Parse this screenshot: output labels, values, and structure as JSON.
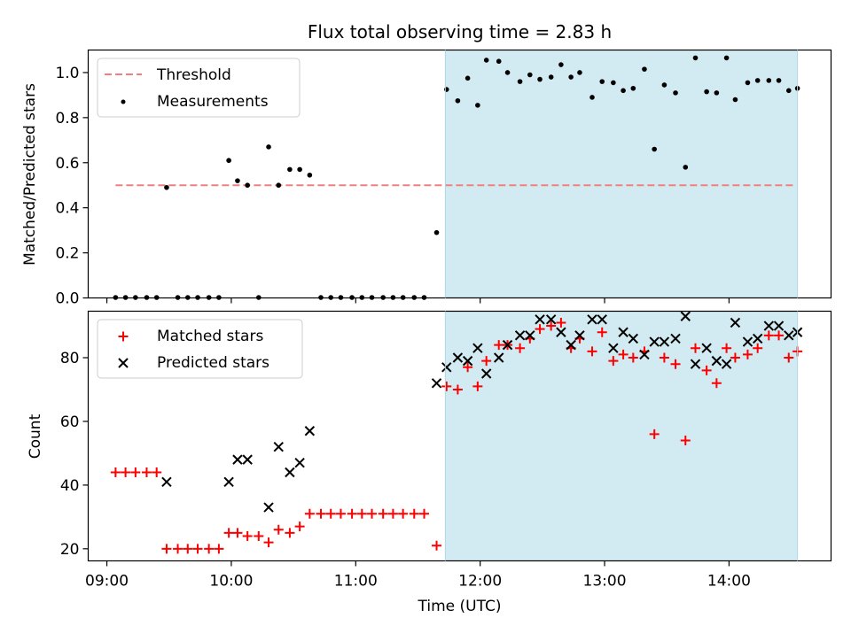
{
  "chart_data": [
    {
      "type": "scatter",
      "title": "Flux total observing time = 2.83 h",
      "xlabel": "",
      "ylabel": "Matched/Predicted stars",
      "xlim": [
        8.85,
        14.82
      ],
      "ylim": [
        0,
        1.1
      ],
      "yticks": [
        0.0,
        0.2,
        0.4,
        0.6,
        0.8,
        1.0
      ],
      "ytick_labels": [
        "0.0",
        "0.2",
        "0.4",
        "0.6",
        "0.8",
        "1.0"
      ],
      "shaded_region": [
        11.72,
        14.55
      ],
      "shaded_color": "#add8e6",
      "threshold": {
        "name": "Threshold",
        "value": 0.5,
        "x_range": [
          9.07,
          14.52
        ],
        "color": "#f08080"
      },
      "legend": [
        "Threshold",
        "Measurements"
      ],
      "legend_loc": "upper-left",
      "series": [
        {
          "name": "Measurements",
          "marker": "dot",
          "color": "#000000",
          "x": [
            9.07,
            9.15,
            9.23,
            9.32,
            9.4,
            9.48,
            9.57,
            9.65,
            9.73,
            9.82,
            9.9,
            9.98,
            10.05,
            10.13,
            10.22,
            10.3,
            10.38,
            10.47,
            10.55,
            10.63,
            10.72,
            10.8,
            10.88,
            10.97,
            11.05,
            11.13,
            11.22,
            11.3,
            11.38,
            11.47,
            11.55,
            11.65,
            11.73,
            11.82,
            11.9,
            11.98,
            12.05,
            12.15,
            12.22,
            12.32,
            12.4,
            12.48,
            12.57,
            12.65,
            12.73,
            12.8,
            12.9,
            12.98,
            13.07,
            13.15,
            13.23,
            13.32,
            13.4,
            13.48,
            13.57,
            13.65,
            13.73,
            13.82,
            13.9,
            13.98,
            14.05,
            14.15,
            14.23,
            14.32,
            14.4,
            14.48,
            14.55
          ],
          "y": [
            0.0,
            0.0,
            0.0,
            0.0,
            0.0,
            0.49,
            0.0,
            0.0,
            0.0,
            0.0,
            0.0,
            0.61,
            0.52,
            0.5,
            0.0,
            0.67,
            0.5,
            0.57,
            0.57,
            0.545,
            0.0,
            0.0,
            0.0,
            0.0,
            0.0,
            0.0,
            0.0,
            0.0,
            0.0,
            0.0,
            0.0,
            0.29,
            0.925,
            0.875,
            0.975,
            0.855,
            1.055,
            1.05,
            1.0,
            0.96,
            0.99,
            0.97,
            0.98,
            1.035,
            0.98,
            1.0,
            0.89,
            0.96,
            0.955,
            0.92,
            0.93,
            1.015,
            0.66,
            0.945,
            0.91,
            0.58,
            1.065,
            0.915,
            0.91,
            1.065,
            0.88,
            0.955,
            0.965,
            0.965,
            0.965,
            0.92,
            0.93
          ]
        }
      ]
    },
    {
      "type": "scatter",
      "title": "",
      "xlabel": "Time (UTC)",
      "ylabel": "Count",
      "xlim": [
        8.85,
        14.82
      ],
      "ylim": [
        16.2,
        94.6
      ],
      "yticks": [
        20,
        40,
        60,
        80
      ],
      "ytick_labels": [
        "20",
        "40",
        "60",
        "80"
      ],
      "xticks": [
        9,
        10,
        11,
        12,
        13,
        14
      ],
      "xtick_labels": [
        "09:00",
        "10:00",
        "11:00",
        "12:00",
        "13:00",
        "14:00"
      ],
      "shaded_region": [
        11.72,
        14.55
      ],
      "shaded_color": "#add8e6",
      "legend": [
        "Matched stars",
        "Predicted stars"
      ],
      "legend_loc": "upper-left",
      "series": [
        {
          "name": "Matched stars",
          "marker": "plus",
          "color": "#ff0000",
          "x": [
            9.07,
            9.15,
            9.23,
            9.32,
            9.4,
            9.48,
            9.57,
            9.65,
            9.73,
            9.82,
            9.9,
            9.98,
            10.05,
            10.13,
            10.22,
            10.3,
            10.38,
            10.47,
            10.55,
            10.63,
            10.72,
            10.8,
            10.88,
            10.97,
            11.05,
            11.13,
            11.22,
            11.3,
            11.38,
            11.47,
            11.55,
            11.65,
            11.73,
            11.82,
            11.9,
            11.98,
            12.05,
            12.15,
            12.22,
            12.32,
            12.4,
            12.48,
            12.57,
            12.65,
            12.73,
            12.8,
            12.9,
            12.98,
            13.07,
            13.15,
            13.23,
            13.32,
            13.4,
            13.48,
            13.57,
            13.65,
            13.73,
            13.82,
            13.9,
            13.98,
            14.05,
            14.15,
            14.23,
            14.32,
            14.4,
            14.48,
            14.55
          ],
          "y": [
            44,
            44,
            44,
            44,
            44,
            20,
            20,
            20,
            20,
            20,
            20,
            25,
            25,
            24,
            24,
            22,
            26,
            25,
            27,
            31,
            31,
            31,
            31,
            31,
            31,
            31,
            31,
            31,
            31,
            31,
            31,
            21,
            71,
            70,
            77,
            71,
            79,
            84,
            84,
            83,
            86,
            89,
            90,
            91,
            83,
            86,
            82,
            88,
            79,
            81,
            80,
            82,
            56,
            80,
            78,
            54,
            83,
            76,
            72,
            83,
            80,
            81,
            83,
            87,
            87,
            80,
            82
          ]
        },
        {
          "name": "Predicted stars",
          "marker": "x",
          "color": "#000000",
          "x": [
            9.48,
            9.98,
            10.05,
            10.13,
            10.3,
            10.38,
            10.47,
            10.55,
            10.63,
            11.65,
            11.73,
            11.82,
            11.9,
            11.98,
            12.05,
            12.15,
            12.22,
            12.32,
            12.4,
            12.48,
            12.57,
            12.65,
            12.73,
            12.8,
            12.9,
            12.98,
            13.07,
            13.15,
            13.23,
            13.32,
            13.4,
            13.48,
            13.57,
            13.65,
            13.73,
            13.82,
            13.9,
            13.98,
            14.05,
            14.15,
            14.23,
            14.32,
            14.4,
            14.48,
            14.55
          ],
          "y": [
            41,
            41,
            48,
            48,
            33,
            52,
            44,
            47,
            57,
            72,
            77,
            80,
            79,
            83,
            75,
            80,
            84,
            87,
            87,
            92,
            92,
            88,
            84,
            87,
            92,
            92,
            83,
            88,
            86,
            81,
            85,
            85,
            86,
            93,
            78,
            83,
            79,
            78,
            91,
            85,
            86,
            90,
            90,
            87,
            88
          ]
        }
      ]
    }
  ]
}
